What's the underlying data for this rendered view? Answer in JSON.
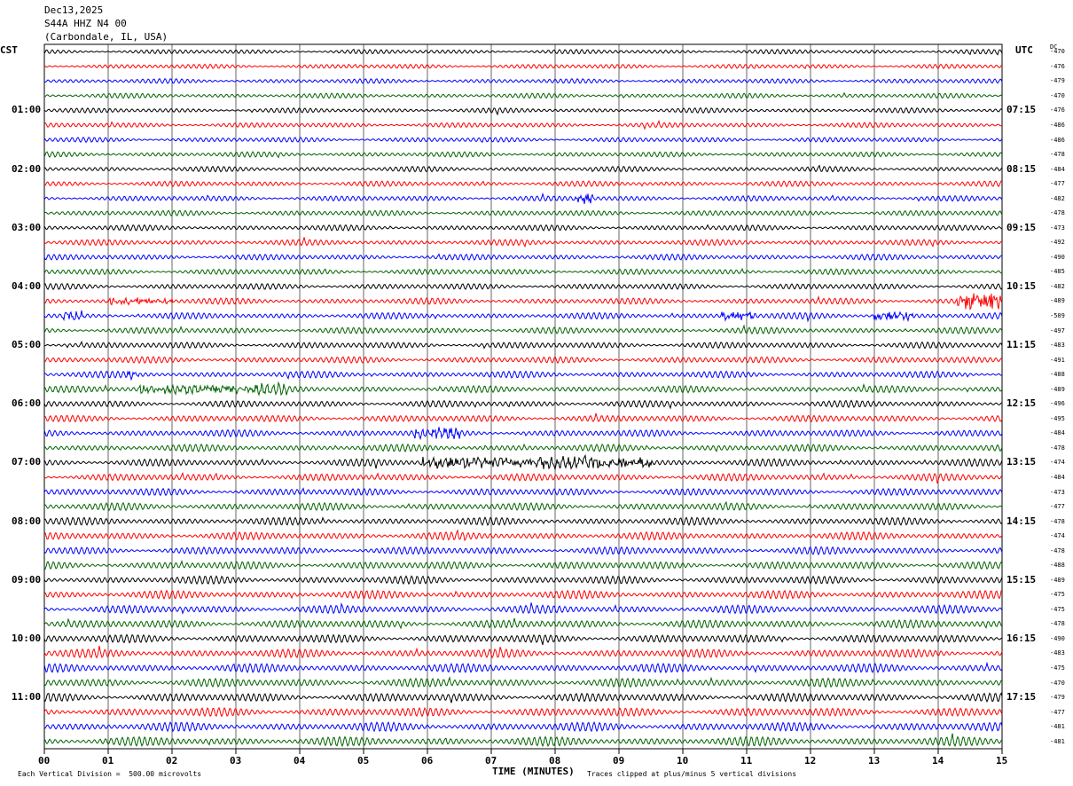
{
  "header": {
    "date": "Dec13,2025",
    "station": "S44A HHZ N4 00",
    "location": "(Carbondale, IL, USA)"
  },
  "labels": {
    "left_zone": "CST",
    "right_zone": "UTC",
    "dc": "DC",
    "xlabel": "TIME (MINUTES)",
    "division_note": "Each Vertical Division =  500.00 microvolts",
    "clip_note": "Traces clipped at plus/minus 5 vertical divisions"
  },
  "colors": {
    "cycle": [
      "#000000",
      "#ff0000",
      "#0000ff",
      "#006400"
    ],
    "grid": "#000000"
  },
  "chart_data": {
    "type": "line",
    "title": "S44A HHZ N4 00",
    "xlabel": "TIME (MINUTES)",
    "xlim": [
      0,
      15
    ],
    "x_ticks": [
      "00",
      "01",
      "02",
      "03",
      "04",
      "05",
      "06",
      "07",
      "08",
      "09",
      "10",
      "11",
      "12",
      "13",
      "14",
      "15"
    ],
    "rows_per_hour": 4,
    "row_count": 48,
    "left_hour_labels": [
      "01:00",
      "02:00",
      "03:00",
      "04:00",
      "05:00",
      "06:00",
      "07:00",
      "08:00",
      "09:00",
      "10:00",
      "11:00"
    ],
    "right_hour_labels": [
      "07:15",
      "08:15",
      "09:15",
      "10:15",
      "11:15",
      "12:15",
      "13:15",
      "14:15",
      "15:15",
      "16:15",
      "17:15"
    ],
    "dc_offsets": [
      -470,
      -476,
      -479,
      -470,
      -476,
      -486,
      -486,
      -478,
      -484,
      -477,
      -482,
      -478,
      -473,
      -492,
      -490,
      -485,
      -482,
      -489,
      -509,
      -497,
      -483,
      -491,
      -488,
      -489,
      -496,
      -495,
      -484,
      -478,
      -474,
      -484,
      -473,
      -477,
      -478,
      -474,
      -478,
      -488,
      -489,
      -475,
      -475,
      -478,
      -490,
      -483,
      -475,
      -470,
      -479,
      -477,
      -481,
      -481
    ],
    "events": [
      {
        "row": 17,
        "start_min": 14.3,
        "end_min": 15.0,
        "amp": 2.6
      },
      {
        "row": 18,
        "start_min": 0.3,
        "end_min": 0.6,
        "amp": 1.4
      },
      {
        "row": 18,
        "start_min": 10.6,
        "end_min": 11.2,
        "amp": 1.2
      },
      {
        "row": 18,
        "start_min": 13.0,
        "end_min": 13.6,
        "amp": 1.2
      },
      {
        "row": 10,
        "start_min": 8.3,
        "end_min": 8.6,
        "amp": 1.6
      },
      {
        "row": 28,
        "start_min": 5.9,
        "end_min": 9.5,
        "amp": 1.5
      },
      {
        "row": 26,
        "start_min": 5.8,
        "end_min": 6.5,
        "amp": 1.3
      },
      {
        "row": 23,
        "start_min": 1.5,
        "end_min": 3.8,
        "amp": 1.2
      },
      {
        "row": 17,
        "start_min": 1.0,
        "end_min": 2.0,
        "amp": 0.9
      },
      {
        "row": 22,
        "start_min": 1.3,
        "end_min": 1.5,
        "amp": 1.2
      }
    ]
  }
}
